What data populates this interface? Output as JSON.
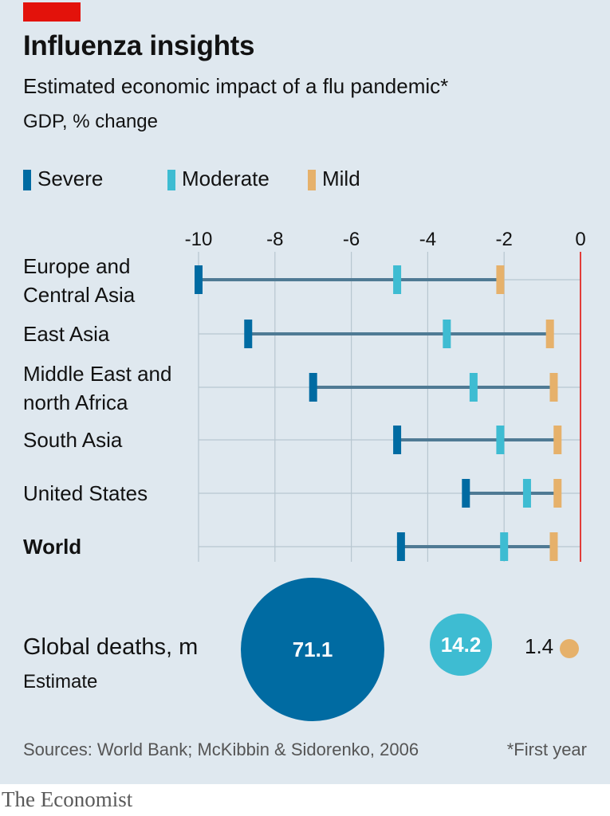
{
  "title": "Influenza insights",
  "subtitle": "Estimated economic impact of a flu pandemic*",
  "unit": "GDP, % change",
  "legend": [
    {
      "label": "Severe",
      "color": "#006ba2"
    },
    {
      "label": "Moderate",
      "color": "#3ebcd2"
    },
    {
      "label": "Mild",
      "color": "#e6b16b"
    }
  ],
  "chart_data": {
    "type": "dot-range",
    "xlim": [
      -10,
      0
    ],
    "ticks": [
      -10,
      -8,
      -6,
      -4,
      -2,
      0
    ],
    "tick_labels": [
      "-10",
      "-8",
      "-6",
      "-4",
      "-2",
      "0"
    ],
    "categories": [
      {
        "label_lines": [
          "Europe and",
          "Central Asia"
        ],
        "bold": false
      },
      {
        "label_lines": [
          "East Asia"
        ],
        "bold": false
      },
      {
        "label_lines": [
          "Middle East and",
          "north Africa"
        ],
        "bold": false
      },
      {
        "label_lines": [
          "South Asia"
        ],
        "bold": false
      },
      {
        "label_lines": [
          "United States"
        ],
        "bold": false
      },
      {
        "label_lines": [
          "World"
        ],
        "bold": true
      }
    ],
    "series": [
      {
        "name": "Severe",
        "values": [
          -10.0,
          -8.7,
          -7.0,
          -4.8,
          -3.0,
          -4.7
        ]
      },
      {
        "name": "Moderate",
        "values": [
          -4.8,
          -3.5,
          -2.8,
          -2.1,
          -1.4,
          -2.0
        ]
      },
      {
        "name": "Mild",
        "values": [
          -2.1,
          -0.8,
          -0.7,
          -0.6,
          -0.6,
          -0.7
        ]
      }
    ],
    "colors": {
      "Severe": "#006ba2",
      "Moderate": "#3ebcd2",
      "Mild": "#e6b16b",
      "range_line": "#4f7a94",
      "zero_line": "#e3120b",
      "grid": "#b7c6d0"
    },
    "grid": true
  },
  "deaths": {
    "title": "Global deaths, m",
    "subtitle": "Estimate",
    "values": [
      {
        "name": "Severe",
        "label": "71.1",
        "value": 71.1,
        "color": "#006ba2"
      },
      {
        "name": "Moderate",
        "label": "14.2",
        "value": 14.2,
        "color": "#3ebcd2"
      },
      {
        "name": "Mild",
        "label": "1.4",
        "value": 1.4,
        "color": "#e6b16b"
      }
    ]
  },
  "sources": "Sources: World Bank; McKibbin & Sidorenko, 2006",
  "footnote": "*First year",
  "brand": "The Economist"
}
